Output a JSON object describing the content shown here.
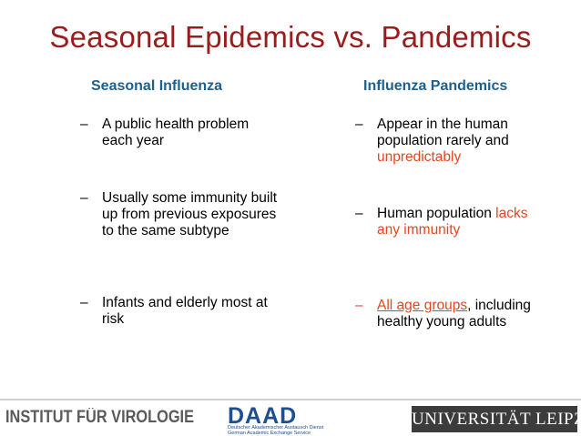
{
  "title": "Seasonal Epidemics vs. Pandemics",
  "left": {
    "heading": "Seasonal Influenza",
    "bullets": [
      {
        "dash": "–",
        "text": "A public health problem each year"
      },
      {
        "dash": "–",
        "text": "Usually some immunity built up from previous exposures to the same subtype"
      },
      {
        "dash": "–",
        "text": "Infants and elderly most at risk"
      }
    ]
  },
  "right": {
    "heading": "Influenza Pandemics",
    "b1": {
      "dash": "–",
      "text": "Appear in the human population rarely and",
      "highlight": "unpredictably"
    },
    "b2": {
      "dash": "–",
      "text": "Human population",
      "highlight": "lacks any immunity"
    },
    "b3": {
      "dash": "–",
      "highlight": "All age groups",
      "text": ", including healthy young adults"
    }
  },
  "footer": {
    "institute": "INSTITUT FÜR VIROLOGIE",
    "daad_logo": "DAAD",
    "daad_line1": "Deutscher Akademischer Austausch Dienst",
    "daad_line2": "German Academic Exchange Service",
    "university": "UNIVERSITÄT LEIPZIG"
  },
  "colors": {
    "title": "#9b1c1c",
    "heading": "#1f5f8b",
    "highlight": "#e2471f"
  }
}
